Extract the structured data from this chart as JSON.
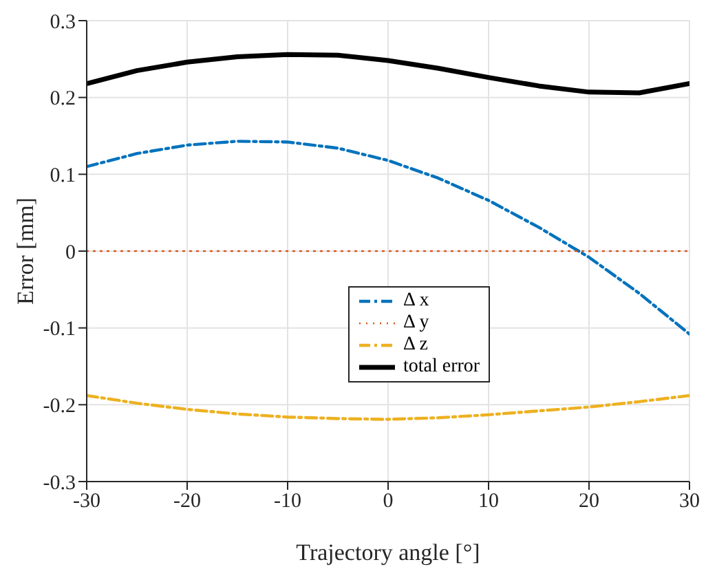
{
  "chart_data": {
    "type": "line",
    "xlabel": "Trajectory angle [°]",
    "ylabel": "Error [mm]",
    "x": [
      -30,
      -25,
      -20,
      -15,
      -10,
      -5,
      0,
      5,
      10,
      15,
      20,
      25,
      30
    ],
    "xlim": [
      -30,
      30
    ],
    "xticks": [
      -30,
      -20,
      -10,
      0,
      10,
      20,
      30
    ],
    "ylim": [
      -0.3,
      0.3
    ],
    "yticks": [
      -0.3,
      -0.2,
      -0.1,
      0,
      0.1,
      0.2,
      0.3
    ],
    "grid": true,
    "legend": "center",
    "marker": "none",
    "series": [
      {
        "name": "Δ x",
        "color": "#0072bd",
        "line_style": "dashed",
        "values": [
          0.11,
          0.127,
          0.138,
          0.143,
          0.142,
          0.134,
          0.118,
          0.095,
          0.066,
          0.031,
          -0.008,
          -0.055,
          -0.108
        ]
      },
      {
        "name": "Δ y",
        "color": "#d95319",
        "line_style": "dotted",
        "values": [
          0,
          0,
          0,
          0,
          0,
          0,
          0,
          0,
          0,
          0,
          0,
          0,
          0
        ]
      },
      {
        "name": "Δ z",
        "color": "#edb120",
        "line_style": "dashed",
        "values": [
          -0.188,
          -0.198,
          -0.206,
          -0.212,
          -0.216,
          -0.218,
          -0.219,
          -0.217,
          -0.213,
          -0.208,
          -0.203,
          -0.196,
          -0.188
        ]
      },
      {
        "name": "total error",
        "color": "#000000",
        "line_style": "solid",
        "values": [
          0.218,
          0.235,
          0.246,
          0.253,
          0.256,
          0.255,
          0.248,
          0.238,
          0.226,
          0.215,
          0.207,
          0.206,
          0.218
        ]
      }
    ]
  }
}
